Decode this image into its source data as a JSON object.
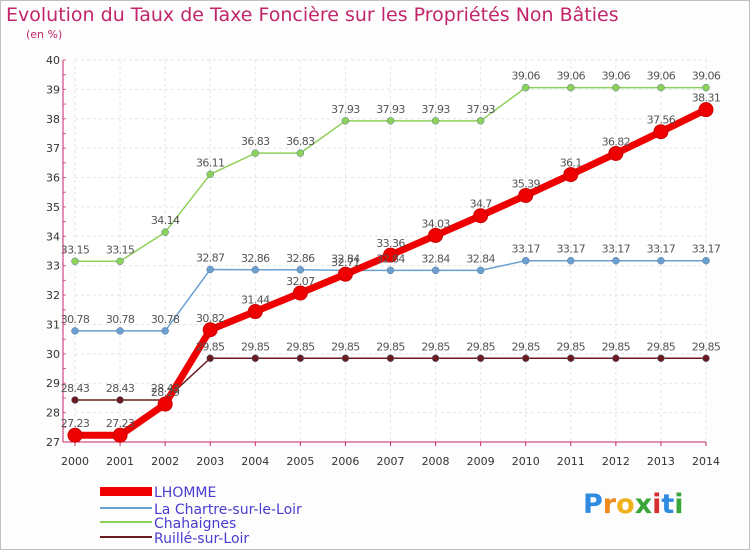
{
  "title": "Evolution du Taux de Taxe Foncière sur les Propriétés Non Bâties",
  "subtitle": "(en %)",
  "logo": {
    "letters": [
      "P",
      "r",
      "o",
      "x",
      "i",
      "t",
      "i"
    ],
    "colors": [
      "#2e8be0",
      "#f08a1c",
      "#f0b21c",
      "#3aa63a",
      "#d62f2f",
      "#2e8be0",
      "#3aa63a"
    ]
  },
  "chart_data": {
    "type": "line",
    "title": "Evolution du Taux de Taxe Foncière sur les Propriétés Non Bâties",
    "ylabel": "(en %)",
    "xlabel": "",
    "ylim": [
      27,
      40
    ],
    "yticks": [
      "27",
      "28",
      "29",
      "30",
      "31",
      "32",
      "33",
      "34",
      "35",
      "36",
      "37",
      "38",
      "39",
      "40"
    ],
    "x": [
      "2000",
      "2001",
      "2002",
      "2003",
      "2004",
      "2005",
      "2006",
      "2007",
      "2008",
      "2009",
      "2010",
      "2011",
      "2012",
      "2013",
      "2014"
    ],
    "grid": true,
    "legend_position": "bottom-left",
    "series": [
      {
        "name": "Ruillé-sur-Loir",
        "color": "#6b1a1f",
        "values": [
          28.43,
          28.43,
          28.43,
          29.85,
          29.85,
          29.85,
          29.85,
          29.85,
          29.85,
          29.85,
          29.85,
          29.85,
          29.85,
          29.85,
          29.85
        ],
        "labels": [
          "28.43",
          "28.43",
          "28.43",
          "29.85",
          "29.85",
          "29.85",
          "29.85",
          "29.85",
          "29.85",
          "29.85",
          "29.85",
          "29.85",
          "29.85",
          "29.85",
          "29.85"
        ]
      },
      {
        "name": "Chahaignes",
        "color": "#8dd05a",
        "values": [
          33.15,
          33.15,
          34.14,
          36.11,
          36.83,
          36.83,
          37.93,
          37.93,
          37.93,
          37.93,
          39.06,
          39.06,
          39.06,
          39.06,
          39.06
        ],
        "labels": [
          "33.15",
          "33.15",
          "34.14",
          "36.11",
          "36.83",
          "36.83",
          "37.93",
          "37.93",
          "37.93",
          "37.93",
          "39.06",
          "39.06",
          "39.06",
          "39.06",
          "39.06"
        ]
      },
      {
        "name": "La Chartre-sur-le-Loir",
        "color": "#6a9fd0",
        "values": [
          30.78,
          30.78,
          30.78,
          32.87,
          32.86,
          32.86,
          32.84,
          32.84,
          32.84,
          32.84,
          33.17,
          33.17,
          33.17,
          33.17,
          33.17
        ],
        "labels": [
          "30.78",
          "30.78",
          "30.78",
          "32.87",
          "32.86",
          "32.86",
          "32.84",
          "32.84",
          "32.84",
          "32.84",
          "33.17",
          "33.17",
          "33.17",
          "33.17",
          "33.17"
        ]
      },
      {
        "name": "LHOMME",
        "color": "#ee0000",
        "values": [
          27.23,
          27.23,
          28.29,
          30.82,
          31.44,
          32.07,
          32.71,
          33.36,
          34.03,
          34.7,
          35.39,
          36.1,
          36.82,
          37.56,
          38.31
        ],
        "labels": [
          "27.23",
          "27.23",
          "28.29",
          "30.82",
          "31.44",
          "32.07",
          "32.71",
          "33.36",
          "34.03",
          "34.7",
          "35.39",
          "36.1",
          "36.82",
          "37.56",
          "38.31"
        ]
      }
    ],
    "legend": [
      "LHOMME",
      "La Chartre-sur-le-Loir",
      "Chahaignes",
      "Ruillé-sur-Loir"
    ]
  }
}
